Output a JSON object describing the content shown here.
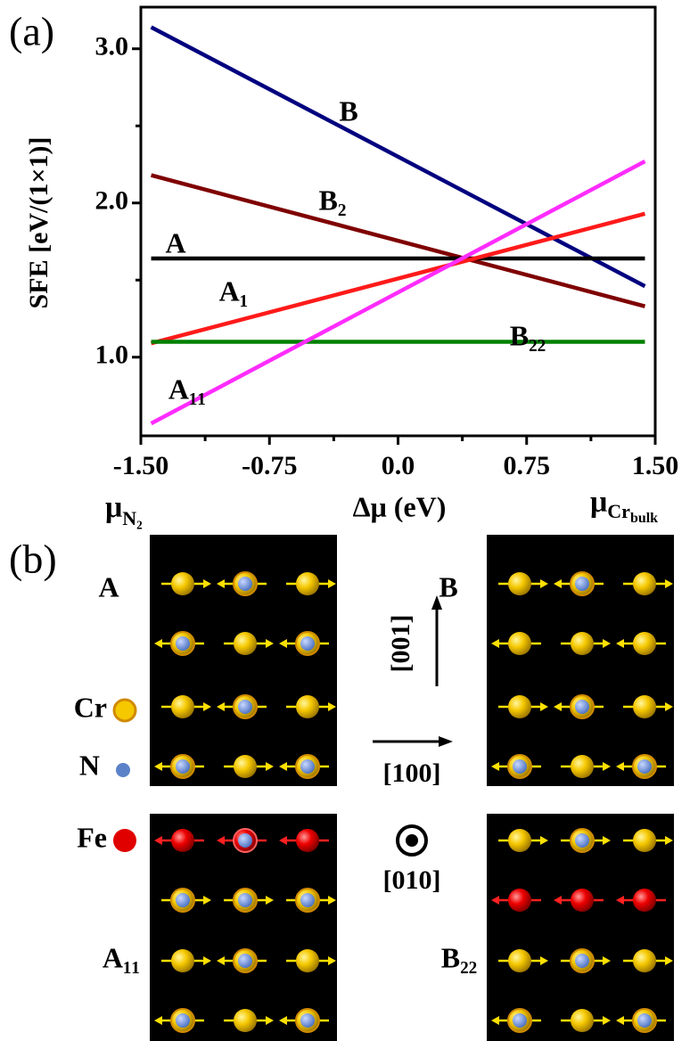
{
  "chart_data": {
    "type": "line",
    "panel_label": "(a)",
    "ylabel": "SFE [eV/(1×1)]",
    "xlabel": "Δμ (eV)",
    "annotations": [
      {
        "text": "μ",
        "sub": "N₂"
      },
      {
        "text": "μ",
        "sub": "Cr",
        "subsub": "bulk"
      }
    ],
    "x": [
      -1.44,
      1.44
    ],
    "series": [
      {
        "name": "B",
        "color": "#00007f",
        "values": [
          3.14,
          1.46
        ]
      },
      {
        "name": "B₂",
        "color": "#7f0000",
        "values": [
          2.18,
          1.33
        ]
      },
      {
        "name": "A",
        "color": "#000000",
        "values": [
          1.64,
          1.64
        ]
      },
      {
        "name": "A₁",
        "color": "#ff1a1a",
        "values": [
          1.09,
          1.93
        ]
      },
      {
        "name": "B₂₂",
        "color": "#008000",
        "values": [
          1.1,
          1.1
        ]
      },
      {
        "name": "A₁₁",
        "color": "#ff2cff",
        "values": [
          0.57,
          2.27
        ]
      }
    ],
    "xlim": [
      -1.5,
      1.5
    ],
    "xticks": [
      {
        "value": -1.5,
        "label": "-1.50"
      },
      {
        "value": -0.75,
        "label": "-0.75"
      },
      {
        "value": 0,
        "label": "0.0"
      },
      {
        "value": 0.75,
        "label": "0.75"
      },
      {
        "value": 1.5,
        "label": "1.50"
      }
    ],
    "xminorticks": [
      -1.125,
      -0.375,
      0.375,
      1.125
    ],
    "ylim": [
      0.49,
      3.27
    ],
    "yticks": [
      {
        "value": 1,
        "label": "1.0"
      },
      {
        "value": 2,
        "label": "2.0"
      },
      {
        "value": 3,
        "label": "3.0"
      }
    ],
    "yminorticks": [
      1.5,
      2.5
    ]
  },
  "figure": {
    "panel_label": "(b)",
    "structures": [
      {
        "label": "A"
      },
      {
        "label": "B"
      },
      {
        "label": "A₁₁"
      },
      {
        "label": "B₂₂"
      }
    ],
    "legend": [
      {
        "label": "Cr"
      },
      {
        "label": "N"
      },
      {
        "label": "Fe"
      }
    ],
    "directions": [
      "[001]",
      "[100]",
      "[010]"
    ]
  }
}
